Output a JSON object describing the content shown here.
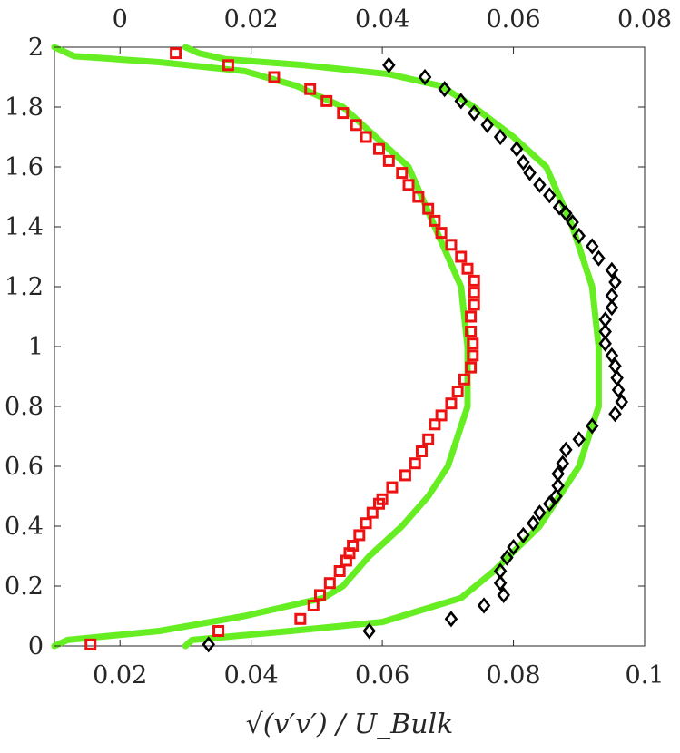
{
  "chart_data": {
    "type": "scatter",
    "xlabel": "√(v′v′) / U_Bulk",
    "bottom_axis": {
      "xlim": [
        0.01,
        0.1
      ],
      "ticks": [
        0.02,
        0.04,
        0.06,
        0.08,
        0.1
      ],
      "tick_labels": [
        "0.02",
        "0.04",
        "0.06",
        "0.08",
        "0.1"
      ]
    },
    "top_axis": {
      "xlim": [
        -0.01,
        0.08
      ],
      "ticks": [
        0,
        0.02,
        0.04,
        0.06,
        0.08
      ],
      "tick_labels": [
        "0",
        "0.02",
        "0.04",
        "0.06",
        "0.08"
      ]
    },
    "ylim": [
      0,
      2
    ],
    "yticks": [
      0,
      0.2,
      0.4,
      0.6,
      0.8,
      1,
      1.2,
      1.4,
      1.6,
      1.8,
      2
    ],
    "ytick_labels": [
      "0",
      "0.2",
      "0.4",
      "0.6",
      "0.8",
      "1",
      "1.2",
      "1.4",
      "1.6",
      "1.8",
      "2"
    ],
    "grid": false,
    "series": [
      {
        "kind": "line",
        "axis": "bottom",
        "color": "#66ee22",
        "points": [
          [
            0.01,
            0.0
          ],
          [
            0.012,
            0.02
          ],
          [
            0.026,
            0.05
          ],
          [
            0.039,
            0.1
          ],
          [
            0.051,
            0.16
          ],
          [
            0.054,
            0.2
          ],
          [
            0.058,
            0.3
          ],
          [
            0.063,
            0.4
          ],
          [
            0.067,
            0.5
          ],
          [
            0.07,
            0.6
          ],
          [
            0.073,
            0.8
          ],
          [
            0.073,
            1.0
          ],
          [
            0.072,
            1.2
          ],
          [
            0.068,
            1.4
          ],
          [
            0.064,
            1.6
          ],
          [
            0.059,
            1.7
          ],
          [
            0.054,
            1.8
          ],
          [
            0.047,
            1.87
          ],
          [
            0.039,
            1.92
          ],
          [
            0.026,
            1.95
          ],
          [
            0.013,
            1.97
          ],
          [
            0.01,
            2.0
          ]
        ]
      },
      {
        "kind": "line",
        "axis": "bottom",
        "color": "#66ee22",
        "points": [
          [
            0.03,
            0.0
          ],
          [
            0.031,
            0.02
          ],
          [
            0.046,
            0.05
          ],
          [
            0.06,
            0.08
          ],
          [
            0.072,
            0.16
          ],
          [
            0.077,
            0.25
          ],
          [
            0.084,
            0.4
          ],
          [
            0.09,
            0.6
          ],
          [
            0.093,
            0.8
          ],
          [
            0.093,
            1.0
          ],
          [
            0.092,
            1.2
          ],
          [
            0.089,
            1.4
          ],
          [
            0.085,
            1.6
          ],
          [
            0.08,
            1.7
          ],
          [
            0.074,
            1.8
          ],
          [
            0.069,
            1.87
          ],
          [
            0.061,
            1.91
          ],
          [
            0.048,
            1.94
          ],
          [
            0.036,
            1.96
          ],
          [
            0.032,
            1.98
          ],
          [
            0.03,
            2.0
          ]
        ]
      },
      {
        "kind": "scatter",
        "axis": "bottom",
        "marker": "square",
        "color": "#ee1111",
        "points": [
          [
            0.0155,
            0.005
          ],
          [
            0.035,
            0.05
          ],
          [
            0.0475,
            0.09
          ],
          [
            0.0495,
            0.135
          ],
          [
            0.0505,
            0.17
          ],
          [
            0.052,
            0.21
          ],
          [
            0.0535,
            0.25
          ],
          [
            0.0545,
            0.285
          ],
          [
            0.055,
            0.31
          ],
          [
            0.0555,
            0.335
          ],
          [
            0.0565,
            0.37
          ],
          [
            0.0575,
            0.41
          ],
          [
            0.0585,
            0.445
          ],
          [
            0.0595,
            0.475
          ],
          [
            0.06,
            0.49
          ],
          [
            0.0615,
            0.53
          ],
          [
            0.0635,
            0.57
          ],
          [
            0.065,
            0.61
          ],
          [
            0.066,
            0.65
          ],
          [
            0.067,
            0.69
          ],
          [
            0.068,
            0.74
          ],
          [
            0.069,
            0.77
          ],
          [
            0.0705,
            0.81
          ],
          [
            0.0715,
            0.85
          ],
          [
            0.0725,
            0.89
          ],
          [
            0.0735,
            0.93
          ],
          [
            0.0738,
            0.97
          ],
          [
            0.0738,
            1.01
          ],
          [
            0.0735,
            1.05
          ],
          [
            0.0735,
            1.1
          ],
          [
            0.074,
            1.14
          ],
          [
            0.074,
            1.18
          ],
          [
            0.074,
            1.22
          ],
          [
            0.073,
            1.26
          ],
          [
            0.072,
            1.3
          ],
          [
            0.0705,
            1.34
          ],
          [
            0.069,
            1.38
          ],
          [
            0.068,
            1.42
          ],
          [
            0.067,
            1.46
          ],
          [
            0.0655,
            1.5
          ],
          [
            0.064,
            1.54
          ],
          [
            0.063,
            1.58
          ],
          [
            0.061,
            1.62
          ],
          [
            0.0595,
            1.66
          ],
          [
            0.0575,
            1.7
          ],
          [
            0.056,
            1.74
          ],
          [
            0.054,
            1.78
          ],
          [
            0.0515,
            1.82
          ],
          [
            0.049,
            1.86
          ],
          [
            0.0435,
            1.9
          ],
          [
            0.0365,
            1.94
          ],
          [
            0.0285,
            1.98
          ]
        ]
      },
      {
        "kind": "scatter",
        "axis": "bottom",
        "marker": "diamond",
        "color": "#000000",
        "points": [
          [
            0.0335,
            0.005
          ],
          [
            0.058,
            0.05
          ],
          [
            0.0705,
            0.09
          ],
          [
            0.0755,
            0.135
          ],
          [
            0.0785,
            0.17
          ],
          [
            0.078,
            0.21
          ],
          [
            0.078,
            0.25
          ],
          [
            0.079,
            0.295
          ],
          [
            0.08,
            0.33
          ],
          [
            0.0815,
            0.37
          ],
          [
            0.083,
            0.41
          ],
          [
            0.084,
            0.445
          ],
          [
            0.0855,
            0.475
          ],
          [
            0.0865,
            0.5
          ],
          [
            0.0868,
            0.535
          ],
          [
            0.0868,
            0.575
          ],
          [
            0.0875,
            0.61
          ],
          [
            0.088,
            0.655
          ],
          [
            0.09,
            0.69
          ],
          [
            0.092,
            0.735
          ],
          [
            0.0955,
            0.775
          ],
          [
            0.0965,
            0.815
          ],
          [
            0.096,
            0.855
          ],
          [
            0.0958,
            0.895
          ],
          [
            0.0955,
            0.935
          ],
          [
            0.095,
            0.97
          ],
          [
            0.094,
            1.01
          ],
          [
            0.094,
            1.05
          ],
          [
            0.094,
            1.09
          ],
          [
            0.095,
            1.13
          ],
          [
            0.095,
            1.17
          ],
          [
            0.0955,
            1.215
          ],
          [
            0.095,
            1.255
          ],
          [
            0.093,
            1.295
          ],
          [
            0.092,
            1.335
          ],
          [
            0.09,
            1.37
          ],
          [
            0.089,
            1.415
          ],
          [
            0.088,
            1.445
          ],
          [
            0.087,
            1.465
          ],
          [
            0.0855,
            1.505
          ],
          [
            0.084,
            1.54
          ],
          [
            0.0825,
            1.58
          ],
          [
            0.0815,
            1.615
          ],
          [
            0.0805,
            1.66
          ],
          [
            0.078,
            1.7
          ],
          [
            0.076,
            1.74
          ],
          [
            0.074,
            1.78
          ],
          [
            0.072,
            1.82
          ],
          [
            0.0695,
            1.86
          ],
          [
            0.0665,
            1.9
          ],
          [
            0.061,
            1.94
          ]
        ]
      }
    ]
  }
}
